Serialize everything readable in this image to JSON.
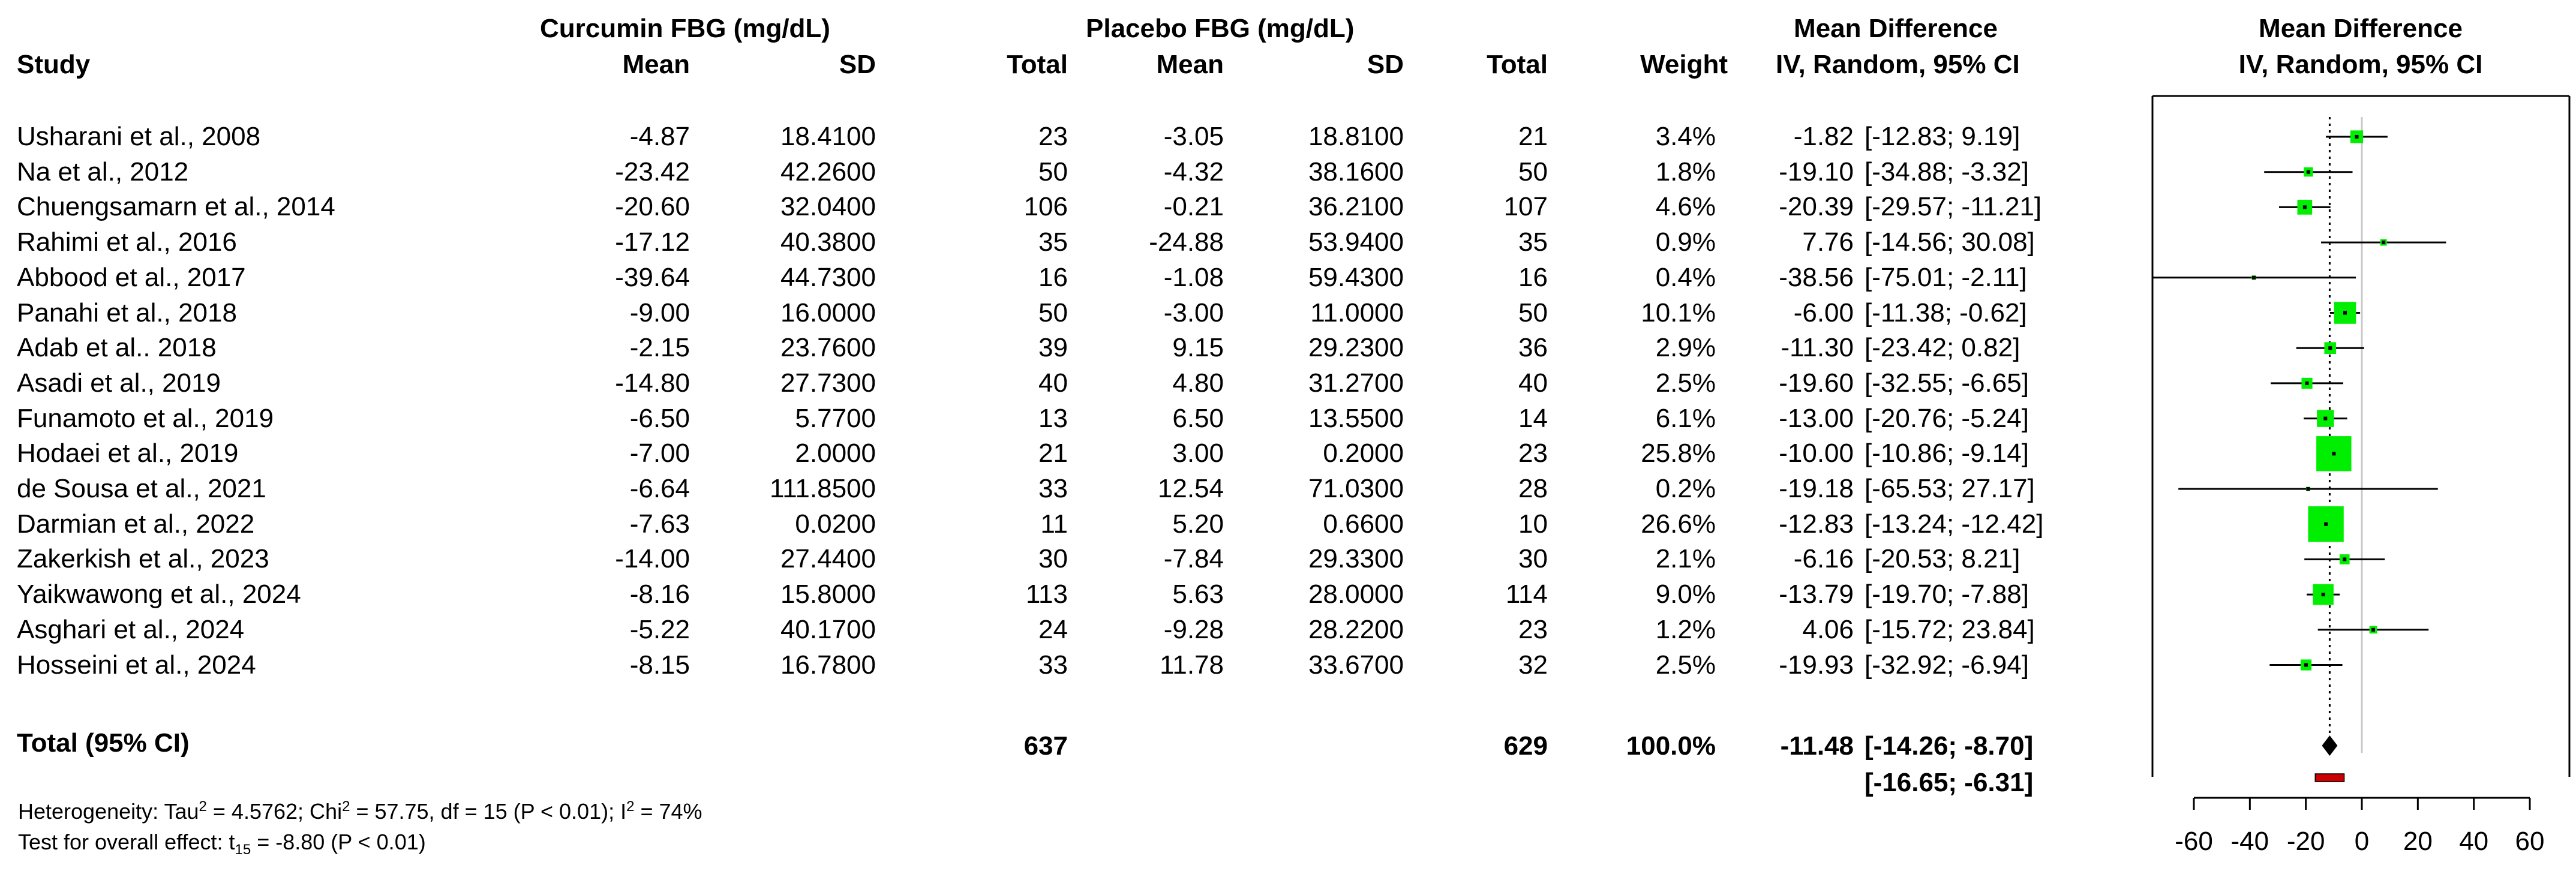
{
  "headers": {
    "study": "Study",
    "curcumin_group": "Curcumin FBG (mg/dL)",
    "placebo_group": "Placebo FBG (mg/dL)",
    "mean": "Mean",
    "sd": "SD",
    "total": "Total",
    "weight": "Weight",
    "md_title": "Mean Difference",
    "md_method": "IV, Random, 95% CI",
    "plot_title": "Mean Difference",
    "plot_method": "IV, Random, 95% CI"
  },
  "studies": [
    {
      "name": "Usharani et al., 2008",
      "c_mean": "-4.87",
      "c_sd": "18.4100",
      "c_total": "23",
      "p_mean": "-3.05",
      "p_sd": "18.8100",
      "p_total": "21",
      "weight": "3.4%",
      "md": "-1.82",
      "ci_text": "[-12.83;  9.19]"
    },
    {
      "name": "Na et al., 2012",
      "c_mean": "-23.42",
      "c_sd": "42.2600",
      "c_total": "50",
      "p_mean": "-4.32",
      "p_sd": "38.1600",
      "p_total": "50",
      "weight": "1.8%",
      "md": "-19.10",
      "ci_text": "[-34.88;  -3.32]"
    },
    {
      "name": "Chuengsamarn et al., 2014",
      "c_mean": "-20.60",
      "c_sd": "32.0400",
      "c_total": "106",
      "p_mean": "-0.21",
      "p_sd": "36.2100",
      "p_total": "107",
      "weight": "4.6%",
      "md": "-20.39",
      "ci_text": "[-29.57; -11.21]"
    },
    {
      "name": "Rahimi et al., 2016",
      "c_mean": "-17.12",
      "c_sd": "40.3800",
      "c_total": "35",
      "p_mean": "-24.88",
      "p_sd": "53.9400",
      "p_total": "35",
      "weight": "0.9%",
      "md": "7.76",
      "ci_text": "[-14.56;  30.08]"
    },
    {
      "name": "Abbood et al., 2017",
      "c_mean": "-39.64",
      "c_sd": "44.7300",
      "c_total": "16",
      "p_mean": "-1.08",
      "p_sd": "59.4300",
      "p_total": "16",
      "weight": "0.4%",
      "md": "-38.56",
      "ci_text": "[-75.01;  -2.11]"
    },
    {
      "name": "Panahi et al., 2018",
      "c_mean": "-9.00",
      "c_sd": "16.0000",
      "c_total": "50",
      "p_mean": "-3.00",
      "p_sd": "11.0000",
      "p_total": "50",
      "weight": "10.1%",
      "md": "-6.00",
      "ci_text": "[-11.38;  -0.62]"
    },
    {
      "name": "Adab et al.. 2018",
      "c_mean": "-2.15",
      "c_sd": "23.7600",
      "c_total": "39",
      "p_mean": "9.15",
      "p_sd": "29.2300",
      "p_total": "36",
      "weight": "2.9%",
      "md": "-11.30",
      "ci_text": "[-23.42;  0.82]"
    },
    {
      "name": "Asadi et al., 2019",
      "c_mean": "-14.80",
      "c_sd": "27.7300",
      "c_total": "40",
      "p_mean": "4.80",
      "p_sd": "31.2700",
      "p_total": "40",
      "weight": "2.5%",
      "md": "-19.60",
      "ci_text": "[-32.55;  -6.65]"
    },
    {
      "name": "Funamoto et al., 2019",
      "c_mean": "-6.50",
      "c_sd": "5.7700",
      "c_total": "13",
      "p_mean": "6.50",
      "p_sd": "13.5500",
      "p_total": "14",
      "weight": "6.1%",
      "md": "-13.00",
      "ci_text": "[-20.76;  -5.24]"
    },
    {
      "name": "Hodaei et al., 2019",
      "c_mean": "-7.00",
      "c_sd": "2.0000",
      "c_total": "21",
      "p_mean": "3.00",
      "p_sd": "0.2000",
      "p_total": "23",
      "weight": "25.8%",
      "md": "-10.00",
      "ci_text": "[-10.86;  -9.14]"
    },
    {
      "name": " de Sousa et al., 2021",
      "c_mean": "-6.64",
      "c_sd": "111.8500",
      "c_total": "33",
      "p_mean": "12.54",
      "p_sd": "71.0300",
      "p_total": "28",
      "weight": "0.2%",
      "md": "-19.18",
      "ci_text": "[-65.53;  27.17]"
    },
    {
      "name": "Darmian et al., 2022",
      "c_mean": "-7.63",
      "c_sd": "0.0200",
      "c_total": "11",
      "p_mean": "5.20",
      "p_sd": "0.6600",
      "p_total": "10",
      "weight": "26.6%",
      "md": "-12.83",
      "ci_text": "[-13.24; -12.42]"
    },
    {
      "name": "Zakerkish et al., 2023",
      "c_mean": "-14.00",
      "c_sd": "27.4400",
      "c_total": "30",
      "p_mean": "-7.84",
      "p_sd": "29.3300",
      "p_total": "30",
      "weight": "2.1%",
      "md": "-6.16",
      "ci_text": "[-20.53;  8.21]"
    },
    {
      "name": "Yaikwawong et al., 2024",
      "c_mean": "-8.16",
      "c_sd": "15.8000",
      "c_total": "113",
      "p_mean": "5.63",
      "p_sd": "28.0000",
      "p_total": "114",
      "weight": "9.0%",
      "md": "-13.79",
      "ci_text": "[-19.70;  -7.88]"
    },
    {
      "name": "Asghari et al., 2024",
      "c_mean": "-5.22",
      "c_sd": "40.1700",
      "c_total": "24",
      "p_mean": "-9.28",
      "p_sd": "28.2200",
      "p_total": "23",
      "weight": "1.2%",
      "md": "4.06",
      "ci_text": "[-15.72;  23.84]"
    },
    {
      "name": "Hosseini et al., 2024",
      "c_mean": "-8.15",
      "c_sd": "16.7800",
      "c_total": "33",
      "p_mean": "11.78",
      "p_sd": "33.6700",
      "p_total": "32",
      "weight": "2.5%",
      "md": "-19.93",
      "ci_text": "[-32.92;  -6.94]"
    }
  ],
  "total": {
    "label": "Total (95% CI)",
    "c_total": "637",
    "p_total": "629",
    "weight": "100.0%",
    "md": "-11.48",
    "ci_text": "[-14.26;  -8.70]",
    "pi_text": "[-16.65;  -6.31]"
  },
  "heterogeneity": {
    "prefix": "Heterogeneity:  Tau",
    "sup1": "2",
    "mid1": " = 4.5762; Chi",
    "sup2": "2",
    "mid2": " = 57.75, df = 15 (P < 0.01); I",
    "sup3": "2",
    "end": " = 74%"
  },
  "overall_effect": {
    "prefix": "Test for overall  effect: t",
    "sub": "15",
    "end": " = -8.80 (P < 0.01)"
  },
  "chart_data": {
    "type": "forest",
    "x_ticks": [
      "-60",
      "-40",
      "-20",
      "0",
      "20",
      "40",
      "60"
    ],
    "xlim": [
      -60,
      60
    ],
    "reference_line": 0,
    "pooled_line": -11.48,
    "studies": [
      {
        "md": -1.82,
        "lo": -12.83,
        "hi": 9.19,
        "weight": 3.4
      },
      {
        "md": -19.1,
        "lo": -34.88,
        "hi": -3.32,
        "weight": 1.8
      },
      {
        "md": -20.39,
        "lo": -29.57,
        "hi": -11.21,
        "weight": 4.6
      },
      {
        "md": 7.76,
        "lo": -14.56,
        "hi": 30.08,
        "weight": 0.9
      },
      {
        "md": -38.56,
        "lo": -75.01,
        "hi": -2.11,
        "weight": 0.4
      },
      {
        "md": -6.0,
        "lo": -11.38,
        "hi": -0.62,
        "weight": 10.1
      },
      {
        "md": -11.3,
        "lo": -23.42,
        "hi": 0.82,
        "weight": 2.9
      },
      {
        "md": -19.6,
        "lo": -32.55,
        "hi": -6.65,
        "weight": 2.5
      },
      {
        "md": -13.0,
        "lo": -20.76,
        "hi": -5.24,
        "weight": 6.1
      },
      {
        "md": -10.0,
        "lo": -10.86,
        "hi": -9.14,
        "weight": 25.8
      },
      {
        "md": -19.18,
        "lo": -65.53,
        "hi": 27.17,
        "weight": 0.2
      },
      {
        "md": -12.83,
        "lo": -13.24,
        "hi": -12.42,
        "weight": 26.6
      },
      {
        "md": -6.16,
        "lo": -20.53,
        "hi": 8.21,
        "weight": 2.1
      },
      {
        "md": -13.79,
        "lo": -19.7,
        "hi": -7.88,
        "weight": 9.0
      },
      {
        "md": 4.06,
        "lo": -15.72,
        "hi": 23.84,
        "weight": 1.2
      },
      {
        "md": -19.93,
        "lo": -32.92,
        "hi": -6.94,
        "weight": 2.5
      }
    ],
    "pooled": {
      "md": -11.48,
      "lo": -14.26,
      "hi": -8.7
    },
    "prediction_interval": {
      "lo": -16.65,
      "hi": -6.31
    },
    "colors": {
      "square": "#00ee00",
      "line": "#000000",
      "diamond": "#000000",
      "prediction": "#cc0000",
      "pooled_line": "#000000"
    }
  }
}
